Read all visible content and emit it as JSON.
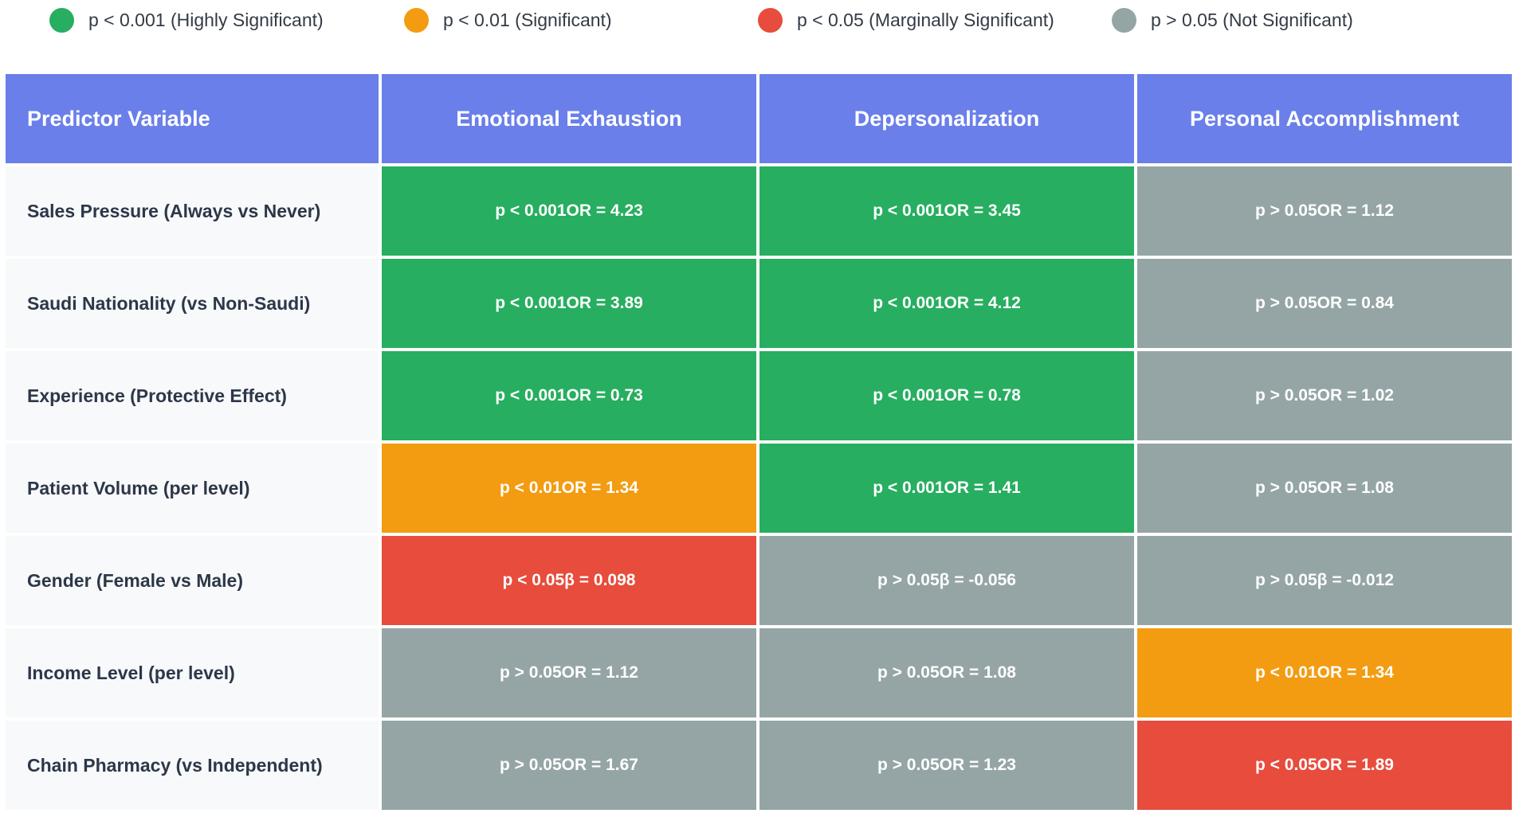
{
  "legend": [
    {
      "label": "p < 0.001 (Highly Significant)",
      "color": "#27ae60"
    },
    {
      "label": "p < 0.01 (Significant)",
      "color": "#f39c12"
    },
    {
      "label": "p < 0.05 (Marginally Significant)",
      "color": "#e74c3c"
    },
    {
      "label": "p > 0.05 (Not Significant)",
      "color": "#95a5a6"
    }
  ],
  "colors": {
    "p<0.001": "#27ae60",
    "p<0.01": "#f39c12",
    "p<0.05": "#e74c3c",
    "p>0.05": "#95a5a6",
    "header": "#6a7fea",
    "label_bg": "#f7f9fb"
  },
  "chart_data": {
    "type": "table",
    "columns": [
      "Predictor Variable",
      "Emotional Exhaustion",
      "Depersonalization",
      "Personal Accomplishment"
    ],
    "rows": [
      {
        "label": "Sales Pressure (Always vs Never)",
        "cells": [
          {
            "p": "p < 0.001",
            "stat": "OR = 4.23",
            "level": "p<0.001"
          },
          {
            "p": "p < 0.001",
            "stat": "OR = 3.45",
            "level": "p<0.001"
          },
          {
            "p": "p > 0.05",
            "stat": "OR = 1.12",
            "level": "p>0.05"
          }
        ]
      },
      {
        "label": "Saudi Nationality (vs Non-Saudi)",
        "cells": [
          {
            "p": "p < 0.001",
            "stat": "OR = 3.89",
            "level": "p<0.001"
          },
          {
            "p": "p < 0.001",
            "stat": "OR = 4.12",
            "level": "p<0.001"
          },
          {
            "p": "p > 0.05",
            "stat": "OR = 0.84",
            "level": "p>0.05"
          }
        ]
      },
      {
        "label": "Experience (Protective Effect)",
        "cells": [
          {
            "p": "p < 0.001",
            "stat": "OR = 0.73",
            "level": "p<0.001"
          },
          {
            "p": "p < 0.001",
            "stat": "OR = 0.78",
            "level": "p<0.001"
          },
          {
            "p": "p > 0.05",
            "stat": "OR = 1.02",
            "level": "p>0.05"
          }
        ]
      },
      {
        "label": "Patient Volume (per level)",
        "cells": [
          {
            "p": "p < 0.01",
            "stat": "OR = 1.34",
            "level": "p<0.01"
          },
          {
            "p": "p < 0.001",
            "stat": "OR = 1.41",
            "level": "p<0.001"
          },
          {
            "p": "p > 0.05",
            "stat": "OR = 1.08",
            "level": "p>0.05"
          }
        ]
      },
      {
        "label": "Gender (Female vs Male)",
        "cells": [
          {
            "p": "p < 0.05",
            "stat": "β = 0.098",
            "level": "p<0.05"
          },
          {
            "p": "p > 0.05",
            "stat": "β = -0.056",
            "level": "p>0.05"
          },
          {
            "p": "p > 0.05",
            "stat": "β = -0.012",
            "level": "p>0.05"
          }
        ]
      },
      {
        "label": "Income Level (per level)",
        "cells": [
          {
            "p": "p > 0.05",
            "stat": "OR = 1.12",
            "level": "p>0.05"
          },
          {
            "p": "p > 0.05",
            "stat": "OR = 1.08",
            "level": "p>0.05"
          },
          {
            "p": "p < 0.01",
            "stat": "OR = 1.34",
            "level": "p<0.01"
          }
        ]
      },
      {
        "label": "Chain Pharmacy (vs Independent)",
        "cells": [
          {
            "p": "p > 0.05",
            "stat": "OR = 1.67",
            "level": "p>0.05"
          },
          {
            "p": "p > 0.05",
            "stat": "OR = 1.23",
            "level": "p>0.05"
          },
          {
            "p": "p < 0.05",
            "stat": "OR = 1.89",
            "level": "p<0.05"
          }
        ]
      }
    ]
  }
}
